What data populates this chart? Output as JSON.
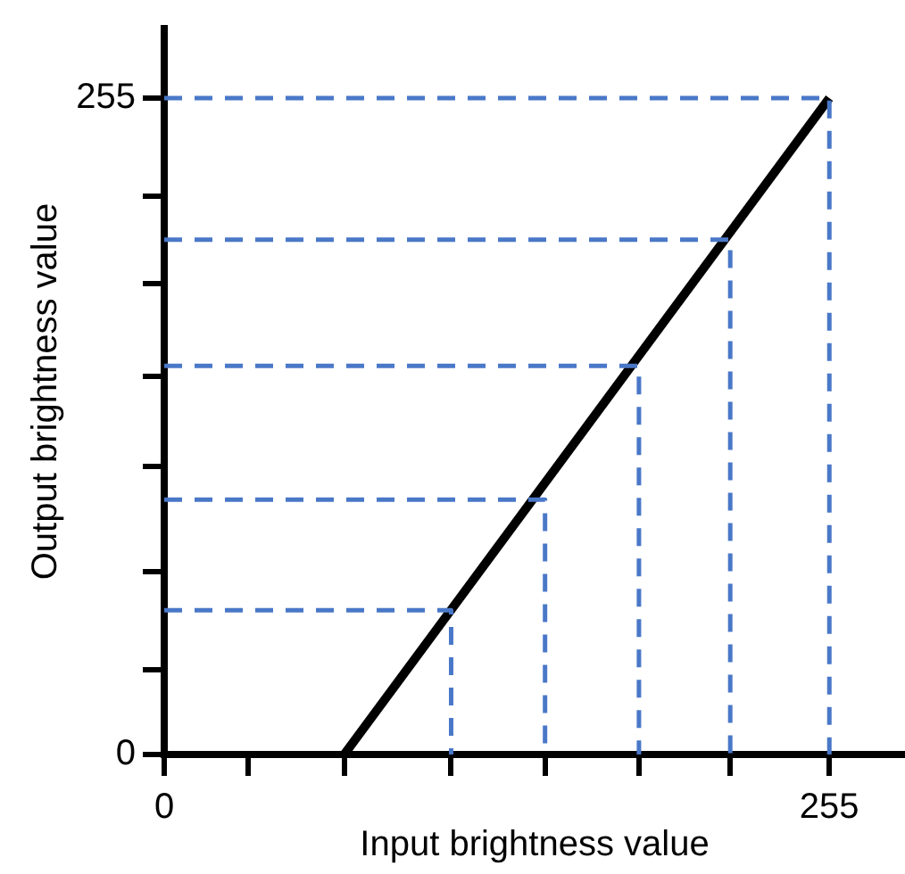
{
  "chart_data": {
    "type": "line",
    "xlabel": "Input brightness value",
    "ylabel": "Output brightness value",
    "xlim": [
      0,
      284
    ],
    "ylim": [
      0,
      282
    ],
    "xticks": [
      {
        "value": 0,
        "label": "0"
      },
      {
        "value": 32,
        "label": null
      },
      {
        "value": 69,
        "label": null
      },
      {
        "value": 110,
        "label": null
      },
      {
        "value": 146,
        "label": null
      },
      {
        "value": 182,
        "label": null
      },
      {
        "value": 217,
        "label": null
      },
      255
    ],
    "yticks": [
      0,
      {
        "value": 33,
        "label": null
      },
      {
        "value": 71,
        "label": null
      },
      {
        "value": 112,
        "label": null
      },
      {
        "value": 147,
        "label": null
      },
      {
        "value": 183,
        "label": null
      },
      {
        "value": 217,
        "label": null
      },
      255
    ],
    "grid": false,
    "legend": false,
    "marker": "none",
    "series": [
      {
        "color": "#4a78c8",
        "line_style": "dashed",
        "x": [
          0,
          110,
          110
        ],
        "values": [
          56,
          56,
          0
        ]
      },
      {
        "color": "#4a78c8",
        "line_style": "dashed",
        "x": [
          0,
          146,
          146
        ],
        "values": [
          99,
          99,
          0
        ]
      },
      {
        "color": "#4a78c8",
        "line_style": "dashed",
        "x": [
          0,
          182,
          182
        ],
        "values": [
          151,
          151,
          0
        ]
      },
      {
        "color": "#4a78c8",
        "line_style": "dashed",
        "x": [
          0,
          217,
          217
        ],
        "values": [
          200,
          200,
          0
        ]
      },
      {
        "color": "#4a78c8",
        "line_style": "dashed",
        "x": [
          0,
          255,
          255
        ],
        "values": [
          255,
          255,
          0
        ]
      },
      {
        "color": "#000000",
        "line_style": "solid",
        "x": [
          69,
          255
        ],
        "values": [
          0,
          255
        ]
      }
    ]
  }
}
